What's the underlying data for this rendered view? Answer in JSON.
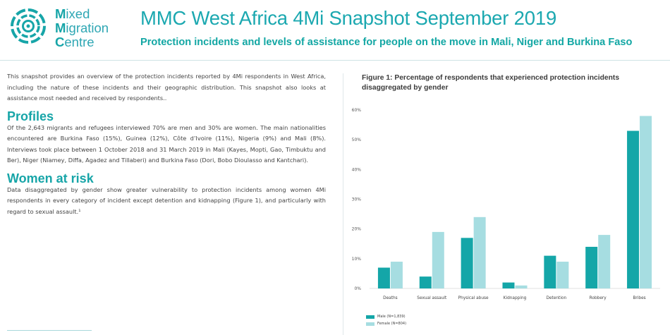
{
  "logo": {
    "line1_initial": "M",
    "line1_rest": "ixed",
    "line2_initial": "M",
    "line2_rest": "igration",
    "line3_initial": "C",
    "line3_rest": "entre",
    "color": "#17a5a8"
  },
  "header": {
    "title": "MMC West Africa 4Mi Snapshot September 2019",
    "subtitle": "Protection incidents and levels of assistance for people on the move in Mali, Niger and Burkina Faso"
  },
  "intro": "This snapshot provides an overview of the protection incidents reported by 4Mi respondents in West Africa, including the nature of these incidents and their geographic distribution. This snapshot also looks at assistance most needed and received by respondents..",
  "sections": [
    {
      "heading": "Profiles",
      "text": "Of the 2,643 migrants and refugees interviewed 70% are men and 30% are women. The main nationalities encountered are Burkina Faso (15%), Guinea (12%), Côte d’Ivoire (11%), Nigeria (9%) and Mali (8%). Interviews took place between 1 October 2018 and 31 March 2019 in Mali (Kayes, Mopti, Gao, Timbuktu and Ber), Niger (Niamey, Diffa, Agadez and Tillaberi) and Burkina Faso (Dori, Bobo Dioulasso and Kantchari)."
    },
    {
      "heading": "Women at risk",
      "text": "Data disaggregated by gender show greater vulnerability to protection incidents among women 4Mi respondents in every category of incident except detention and kidnapping (Figure 1), and particularly with regard to sexual assault.¹"
    }
  ],
  "figure": {
    "title": "Figure 1: Percentage of respondents that experienced protection incidents disaggregated by gender"
  },
  "chart_data": {
    "type": "bar",
    "title": "Figure 1: Percentage of respondents that experienced protection incidents disaggregated by gender",
    "categories": [
      "Deaths",
      "Sexual assault",
      "Physical abuse",
      "Kidnapping",
      "Detention",
      "Robbery",
      "Bribes"
    ],
    "series": [
      {
        "name": "Male (N=1,839)",
        "values": [
          7,
          4,
          17,
          2,
          11,
          14,
          53
        ],
        "color": "#14a6a8"
      },
      {
        "name": "Female (N=804)",
        "values": [
          9,
          19,
          24,
          1,
          9,
          18,
          58
        ],
        "color": "#a6dde1"
      }
    ],
    "y_ticks": [
      "0%",
      "10%",
      "20%",
      "30%",
      "40%",
      "50%",
      "60%"
    ],
    "ylim": [
      0,
      60
    ],
    "grid": false,
    "legend": "bottom-left"
  }
}
